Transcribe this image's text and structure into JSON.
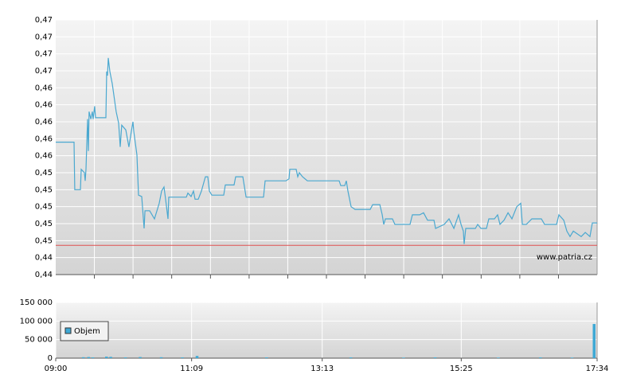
{
  "chart_data": [
    {
      "type": "line",
      "xlim": [
        540,
        1054
      ],
      "xgrid": [
        576.7,
        613.4,
        650.1,
        686.9,
        723.6,
        760.3,
        797,
        833.7,
        870.4,
        907.1,
        943.9,
        980.6,
        1017.3
      ],
      "ylim": [
        0.44,
        0.4775
      ],
      "yticks": [
        {
          "value": 0.44,
          "label": "0,44"
        },
        {
          "value": 0.4425,
          "label": "0,44"
        },
        {
          "value": 0.445,
          "label": "0,45"
        },
        {
          "value": 0.4475,
          "label": "0,45"
        },
        {
          "value": 0.45,
          "label": "0,45"
        },
        {
          "value": 0.4525,
          "label": "0,45"
        },
        {
          "value": 0.455,
          "label": "0,45"
        },
        {
          "value": 0.4575,
          "label": "0,46"
        },
        {
          "value": 0.46,
          "label": "0,46"
        },
        {
          "value": 0.4625,
          "label": "0,46"
        },
        {
          "value": 0.465,
          "label": "0,46"
        },
        {
          "value": 0.4675,
          "label": "0,46"
        },
        {
          "value": 0.47,
          "label": "0,47"
        },
        {
          "value": 0.4725,
          "label": "0,47"
        },
        {
          "value": 0.475,
          "label": "0,47"
        },
        {
          "value": 0.4775,
          "label": "0,47"
        }
      ],
      "grid": true,
      "reference_line": {
        "value": 0.4443,
        "color": "#e05050"
      },
      "watermark": "www.patria.cz",
      "series": [
        {
          "color": "#4aa8d0",
          "x": [
            540,
            557.4,
            558.1,
            563.4,
            564.2,
            567.2,
            568.0,
            568.7,
            570.2,
            571.0,
            571.7,
            573.3,
            574.8,
            575.5,
            577.0,
            577.8,
            587.6,
            588.4,
            589.1,
            589.9,
            591.4,
            593.7,
            597.4,
            599.7,
            601.2,
            602.7,
            606.5,
            609.5,
            611.8,
            613.3,
            614.1,
            617.1,
            618.6,
            621.6,
            623.9,
            624.7,
            629.2,
            633.7,
            638.3,
            640.5,
            642.8,
            644.3,
            646.6,
            647.3,
            664.0,
            665.5,
            668.5,
            670.8,
            672.3,
            675.3,
            678.3,
            682.1,
            684.4,
            685.9,
            688.2,
            699.5,
            701.0,
            709.3,
            710.8,
            717.6,
            720.7,
            737.3,
            738.8,
            758.5,
            761.5,
            762.2,
            768.3,
            769.8,
            771.3,
            774.3,
            778.9,
            809.1,
            810.6,
            814.4,
            815.9,
            817.4,
            820.4,
            824.2,
            838.6,
            840.9,
            847.7,
            850.0,
            851.4,
            853.0,
            859.7,
            862.0,
            876.4,
            878.6,
            885.5,
            889.2,
            893.0,
            899.1,
            900.6,
            908.9,
            913.4,
            918.0,
            922.5,
            924.8,
            927.0,
            927.8,
            929.3,
            938.4,
            940.6,
            943.7,
            948.9,
            951.2,
            956.5,
            959.5,
            961.8,
            965.6,
            969.4,
            973.1,
            977.7,
            981.5,
            983.0,
            986.8,
            992.0,
            1001.1,
            1004.1,
            1015.5,
            1017.7,
            1022.3,
            1025.3,
            1028.3,
            1031.4,
            1038.9,
            1042.7,
            1047.2,
            1049.5,
            1054
          ],
          "values": [
            0.4595,
            0.4595,
            0.4525,
            0.4525,
            0.4555,
            0.455,
            0.4538,
            0.4555,
            0.4629,
            0.4582,
            0.464,
            0.4629,
            0.464,
            0.4629,
            0.4648,
            0.4631,
            0.4631,
            0.4699,
            0.4693,
            0.4719,
            0.4699,
            0.4681,
            0.464,
            0.4623,
            0.4588,
            0.462,
            0.4613,
            0.4588,
            0.4611,
            0.4625,
            0.4611,
            0.4576,
            0.4517,
            0.4515,
            0.4468,
            0.4494,
            0.4494,
            0.4482,
            0.4505,
            0.4523,
            0.4529,
            0.4511,
            0.4482,
            0.4514,
            0.4514,
            0.452,
            0.4515,
            0.4523,
            0.4511,
            0.4511,
            0.4523,
            0.4544,
            0.4544,
            0.4523,
            0.4517,
            0.4517,
            0.4532,
            0.4532,
            0.4544,
            0.4544,
            0.4514,
            0.4514,
            0.4538,
            0.4538,
            0.4541,
            0.4555,
            0.4555,
            0.4544,
            0.455,
            0.4544,
            0.4538,
            0.4538,
            0.4531,
            0.4531,
            0.4538,
            0.4523,
            0.45,
            0.4496,
            0.4496,
            0.4503,
            0.4503,
            0.4488,
            0.4474,
            0.4482,
            0.4482,
            0.4474,
            0.4474,
            0.4488,
            0.4488,
            0.4491,
            0.448,
            0.448,
            0.4468,
            0.4474,
            0.4482,
            0.4468,
            0.4488,
            0.4474,
            0.4464,
            0.4445,
            0.4468,
            0.4468,
            0.4474,
            0.4468,
            0.4468,
            0.4482,
            0.4482,
            0.4488,
            0.4474,
            0.448,
            0.4491,
            0.4482,
            0.45,
            0.4505,
            0.4474,
            0.4474,
            0.4482,
            0.4482,
            0.4474,
            0.4474,
            0.4488,
            0.448,
            0.4464,
            0.4456,
            0.4464,
            0.4456,
            0.4462,
            0.4456,
            0.4476,
            0.4476
          ]
        }
      ]
    },
    {
      "type": "bar",
      "xlim": [
        540,
        1054
      ],
      "xticks": [
        {
          "value": 540,
          "label": "09:00"
        },
        {
          "value": 669,
          "label": "11:09"
        },
        {
          "value": 793,
          "label": "13:13"
        },
        {
          "value": 925,
          "label": "15:25"
        },
        {
          "value": 1054,
          "label": "17:34"
        }
      ],
      "ylim": [
        0,
        150000
      ],
      "yticks": [
        0,
        {
          "value": 50000,
          "label": "50 000"
        },
        {
          "value": 100000,
          "label": "100 000"
        },
        {
          "value": 150000,
          "label": "150 000"
        }
      ],
      "grid": true,
      "series": [
        {
          "name": "Objem",
          "color": "#3fa9d5",
          "x": [
            566,
            571,
            575,
            588,
            592,
            606,
            620,
            640,
            660,
            674,
            740,
            820,
            870,
            900,
            960,
            1000,
            1030,
            1051
          ],
          "values": [
            2500,
            3000,
            2000,
            4000,
            3500,
            2000,
            3000,
            2500,
            2000,
            6000,
            2000,
            2000,
            1500,
            2000,
            1500,
            2000,
            1500,
            92000
          ]
        }
      ]
    }
  ]
}
